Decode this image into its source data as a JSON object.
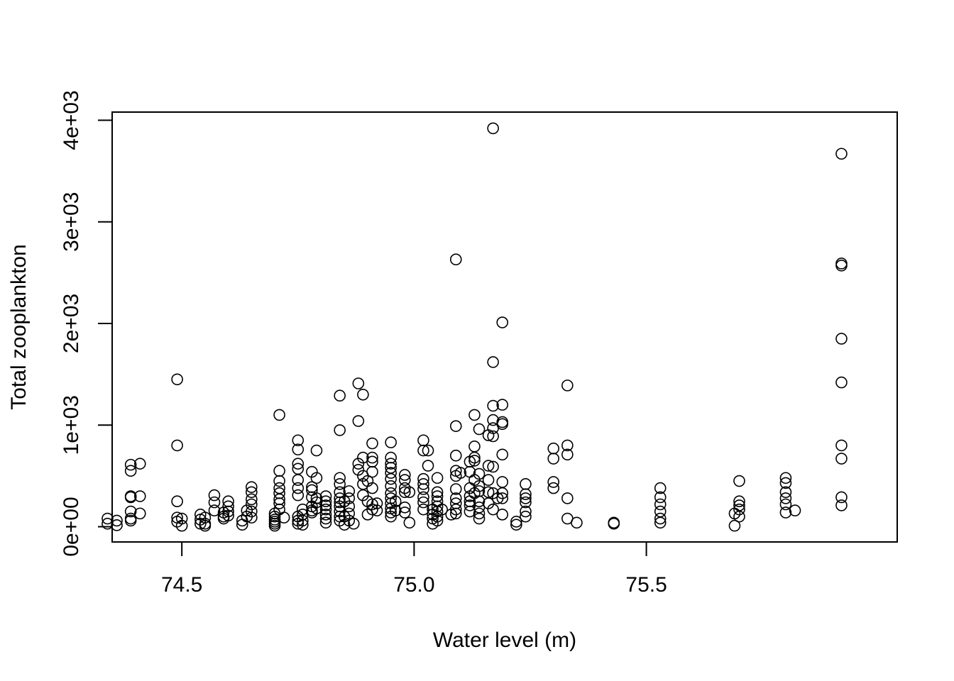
{
  "chart_data": {
    "type": "scatter",
    "title": "",
    "xlabel": "Water level (m)",
    "ylabel": "Total zooplankton",
    "xlim": [
      74.35,
      76.04
    ],
    "ylim": [
      -150,
      4080
    ],
    "x_ticks": [
      74.5,
      75.0,
      75.5
    ],
    "x_tick_labels": [
      "74.5",
      "75.0",
      "75.5"
    ],
    "y_ticks": [
      0,
      1000,
      2000,
      3000,
      4000
    ],
    "y_tick_labels": [
      "0e+00",
      "1e+03",
      "2e+03",
      "3e+03",
      "4e+03"
    ],
    "grid": false,
    "marker": "open-circle",
    "colors": {
      "marker": "#000000",
      "axis": "#000000",
      "background": "#ffffff"
    },
    "points": [
      [
        74.34,
        30
      ],
      [
        74.34,
        80
      ],
      [
        74.36,
        15
      ],
      [
        74.36,
        60
      ],
      [
        74.39,
        610
      ],
      [
        74.39,
        550
      ],
      [
        74.39,
        300
      ],
      [
        74.39,
        290
      ],
      [
        74.39,
        150
      ],
      [
        74.39,
        80
      ],
      [
        74.39,
        60
      ],
      [
        74.41,
        620
      ],
      [
        74.41,
        300
      ],
      [
        74.41,
        130
      ],
      [
        74.49,
        1450
      ],
      [
        74.49,
        800
      ],
      [
        74.49,
        250
      ],
      [
        74.49,
        90
      ],
      [
        74.49,
        50
      ],
      [
        74.5,
        80
      ],
      [
        74.5,
        10
      ],
      [
        74.54,
        120
      ],
      [
        74.54,
        70
      ],
      [
        74.54,
        30
      ],
      [
        74.55,
        90
      ],
      [
        74.55,
        30
      ],
      [
        74.55,
        10
      ],
      [
        74.57,
        310
      ],
      [
        74.57,
        240
      ],
      [
        74.57,
        160
      ],
      [
        74.59,
        140
      ],
      [
        74.59,
        100
      ],
      [
        74.59,
        80
      ],
      [
        74.6,
        250
      ],
      [
        74.6,
        200
      ],
      [
        74.6,
        150
      ],
      [
        74.6,
        110
      ],
      [
        74.63,
        60
      ],
      [
        74.63,
        20
      ],
      [
        74.64,
        160
      ],
      [
        74.64,
        100
      ],
      [
        74.65,
        390
      ],
      [
        74.65,
        340
      ],
      [
        74.65,
        270
      ],
      [
        74.65,
        220
      ],
      [
        74.65,
        150
      ],
      [
        74.65,
        90
      ],
      [
        74.7,
        130
      ],
      [
        74.7,
        100
      ],
      [
        74.7,
        70
      ],
      [
        74.7,
        50
      ],
      [
        74.7,
        30
      ],
      [
        74.7,
        10
      ],
      [
        74.71,
        1100
      ],
      [
        74.71,
        550
      ],
      [
        74.71,
        450
      ],
      [
        74.71,
        380
      ],
      [
        74.71,
        330
      ],
      [
        74.71,
        270
      ],
      [
        74.71,
        230
      ],
      [
        74.71,
        170
      ],
      [
        74.72,
        90
      ],
      [
        74.75,
        850
      ],
      [
        74.75,
        760
      ],
      [
        74.75,
        620
      ],
      [
        74.75,
        570
      ],
      [
        74.75,
        460
      ],
      [
        74.75,
        380
      ],
      [
        74.75,
        310
      ],
      [
        74.75,
        100
      ],
      [
        74.75,
        60
      ],
      [
        74.75,
        30
      ],
      [
        74.76,
        170
      ],
      [
        74.76,
        120
      ],
      [
        74.76,
        60
      ],
      [
        74.76,
        20
      ],
      [
        74.78,
        540
      ],
      [
        74.78,
        390
      ],
      [
        74.78,
        360
      ],
      [
        74.78,
        290
      ],
      [
        74.78,
        200
      ],
      [
        74.78,
        160
      ],
      [
        74.78,
        140
      ],
      [
        74.79,
        750
      ],
      [
        74.79,
        480
      ],
      [
        74.79,
        280
      ],
      [
        74.79,
        240
      ],
      [
        74.79,
        180
      ],
      [
        74.81,
        300
      ],
      [
        74.81,
        250
      ],
      [
        74.81,
        210
      ],
      [
        74.81,
        170
      ],
      [
        74.81,
        120
      ],
      [
        74.81,
        80
      ],
      [
        74.81,
        40
      ],
      [
        74.84,
        1290
      ],
      [
        74.84,
        950
      ],
      [
        74.84,
        480
      ],
      [
        74.84,
        420
      ],
      [
        74.84,
        340
      ],
      [
        74.84,
        280
      ],
      [
        74.84,
        240
      ],
      [
        74.84,
        200
      ],
      [
        74.84,
        150
      ],
      [
        74.84,
        100
      ],
      [
        74.84,
        60
      ],
      [
        74.85,
        250
      ],
      [
        74.85,
        100
      ],
      [
        74.85,
        20
      ],
      [
        74.86,
        350
      ],
      [
        74.86,
        280
      ],
      [
        74.86,
        200
      ],
      [
        74.86,
        130
      ],
      [
        74.86,
        60
      ],
      [
        74.87,
        30
      ],
      [
        74.88,
        1410
      ],
      [
        74.88,
        1040
      ],
      [
        74.88,
        620
      ],
      [
        74.88,
        560
      ],
      [
        74.89,
        1300
      ],
      [
        74.89,
        680
      ],
      [
        74.89,
        500
      ],
      [
        74.89,
        420
      ],
      [
        74.89,
        310
      ],
      [
        74.9,
        450
      ],
      [
        74.9,
        250
      ],
      [
        74.9,
        120
      ],
      [
        74.91,
        820
      ],
      [
        74.91,
        680
      ],
      [
        74.91,
        640
      ],
      [
        74.91,
        540
      ],
      [
        74.91,
        380
      ],
      [
        74.91,
        220
      ],
      [
        74.91,
        170
      ],
      [
        74.92,
        230
      ],
      [
        74.92,
        160
      ],
      [
        74.95,
        830
      ],
      [
        74.95,
        680
      ],
      [
        74.95,
        620
      ],
      [
        74.95,
        580
      ],
      [
        74.95,
        530
      ],
      [
        74.95,
        470
      ],
      [
        74.95,
        400
      ],
      [
        74.95,
        330
      ],
      [
        74.95,
        280
      ],
      [
        74.95,
        230
      ],
      [
        74.95,
        180
      ],
      [
        74.95,
        140
      ],
      [
        74.95,
        100
      ],
      [
        74.96,
        250
      ],
      [
        74.96,
        160
      ],
      [
        74.98,
        510
      ],
      [
        74.98,
        460
      ],
      [
        74.98,
        380
      ],
      [
        74.98,
        340
      ],
      [
        74.98,
        190
      ],
      [
        74.98,
        140
      ],
      [
        74.99,
        340
      ],
      [
        74.99,
        40
      ],
      [
        75.02,
        850
      ],
      [
        75.02,
        750
      ],
      [
        75.02,
        470
      ],
      [
        75.02,
        420
      ],
      [
        75.02,
        370
      ],
      [
        75.02,
        290
      ],
      [
        75.02,
        240
      ],
      [
        75.02,
        170
      ],
      [
        75.03,
        750
      ],
      [
        75.03,
        600
      ],
      [
        75.04,
        170
      ],
      [
        75.04,
        120
      ],
      [
        75.04,
        80
      ],
      [
        75.04,
        30
      ],
      [
        75.05,
        480
      ],
      [
        75.05,
        340
      ],
      [
        75.05,
        300
      ],
      [
        75.05,
        250
      ],
      [
        75.05,
        200
      ],
      [
        75.05,
        150
      ],
      [
        75.05,
        100
      ],
      [
        75.05,
        60
      ],
      [
        75.06,
        170
      ],
      [
        75.08,
        120
      ],
      [
        75.09,
        2630
      ],
      [
        75.09,
        990
      ],
      [
        75.09,
        700
      ],
      [
        75.09,
        550
      ],
      [
        75.09,
        500
      ],
      [
        75.09,
        370
      ],
      [
        75.09,
        280
      ],
      [
        75.09,
        230
      ],
      [
        75.09,
        170
      ],
      [
        75.09,
        130
      ],
      [
        75.1,
        530
      ],
      [
        75.12,
        640
      ],
      [
        75.12,
        540
      ],
      [
        75.12,
        380
      ],
      [
        75.12,
        300
      ],
      [
        75.12,
        250
      ],
      [
        75.12,
        210
      ],
      [
        75.12,
        150
      ],
      [
        75.13,
        1100
      ],
      [
        75.13,
        790
      ],
      [
        75.13,
        680
      ],
      [
        75.13,
        650
      ],
      [
        75.13,
        460
      ],
      [
        75.13,
        330
      ],
      [
        75.14,
        960
      ],
      [
        75.14,
        520
      ],
      [
        75.14,
        400
      ],
      [
        75.14,
        350
      ],
      [
        75.14,
        250
      ],
      [
        75.14,
        190
      ],
      [
        75.14,
        130
      ],
      [
        75.14,
        80
      ],
      [
        75.16,
        900
      ],
      [
        75.16,
        600
      ],
      [
        75.16,
        460
      ],
      [
        75.16,
        340
      ],
      [
        75.16,
        230
      ],
      [
        75.17,
        3920
      ],
      [
        75.17,
        1620
      ],
      [
        75.17,
        1190
      ],
      [
        75.17,
        1050
      ],
      [
        75.17,
        970
      ],
      [
        75.17,
        890
      ],
      [
        75.17,
        590
      ],
      [
        75.17,
        330
      ],
      [
        75.17,
        170
      ],
      [
        75.18,
        280
      ],
      [
        75.19,
        2010
      ],
      [
        75.19,
        1200
      ],
      [
        75.19,
        1030
      ],
      [
        75.19,
        1010
      ],
      [
        75.19,
        710
      ],
      [
        75.19,
        440
      ],
      [
        75.19,
        330
      ],
      [
        75.19,
        280
      ],
      [
        75.19,
        120
      ],
      [
        75.22,
        50
      ],
      [
        75.22,
        20
      ],
      [
        75.24,
        420
      ],
      [
        75.24,
        320
      ],
      [
        75.24,
        280
      ],
      [
        75.24,
        240
      ],
      [
        75.24,
        150
      ],
      [
        75.24,
        100
      ],
      [
        75.3,
        770
      ],
      [
        75.3,
        670
      ],
      [
        75.3,
        440
      ],
      [
        75.3,
        380
      ],
      [
        75.33,
        1390
      ],
      [
        75.33,
        800
      ],
      [
        75.33,
        710
      ],
      [
        75.33,
        280
      ],
      [
        75.33,
        80
      ],
      [
        75.35,
        40
      ],
      [
        75.43,
        40
      ],
      [
        75.43,
        30
      ],
      [
        75.53,
        380
      ],
      [
        75.53,
        290
      ],
      [
        75.53,
        220
      ],
      [
        75.53,
        150
      ],
      [
        75.53,
        80
      ],
      [
        75.53,
        40
      ],
      [
        75.69,
        10
      ],
      [
        75.69,
        130
      ],
      [
        75.7,
        450
      ],
      [
        75.7,
        250
      ],
      [
        75.7,
        210
      ],
      [
        75.7,
        170
      ],
      [
        75.7,
        100
      ],
      [
        75.8,
        480
      ],
      [
        75.8,
        430
      ],
      [
        75.8,
        340
      ],
      [
        75.8,
        280
      ],
      [
        75.8,
        220
      ],
      [
        75.8,
        140
      ],
      [
        75.82,
        160
      ],
      [
        75.92,
        3670
      ],
      [
        75.92,
        2590
      ],
      [
        75.92,
        2570
      ],
      [
        75.92,
        1850
      ],
      [
        75.92,
        1420
      ],
      [
        75.92,
        800
      ],
      [
        75.92,
        670
      ],
      [
        75.92,
        290
      ],
      [
        75.92,
        210
      ]
    ]
  }
}
